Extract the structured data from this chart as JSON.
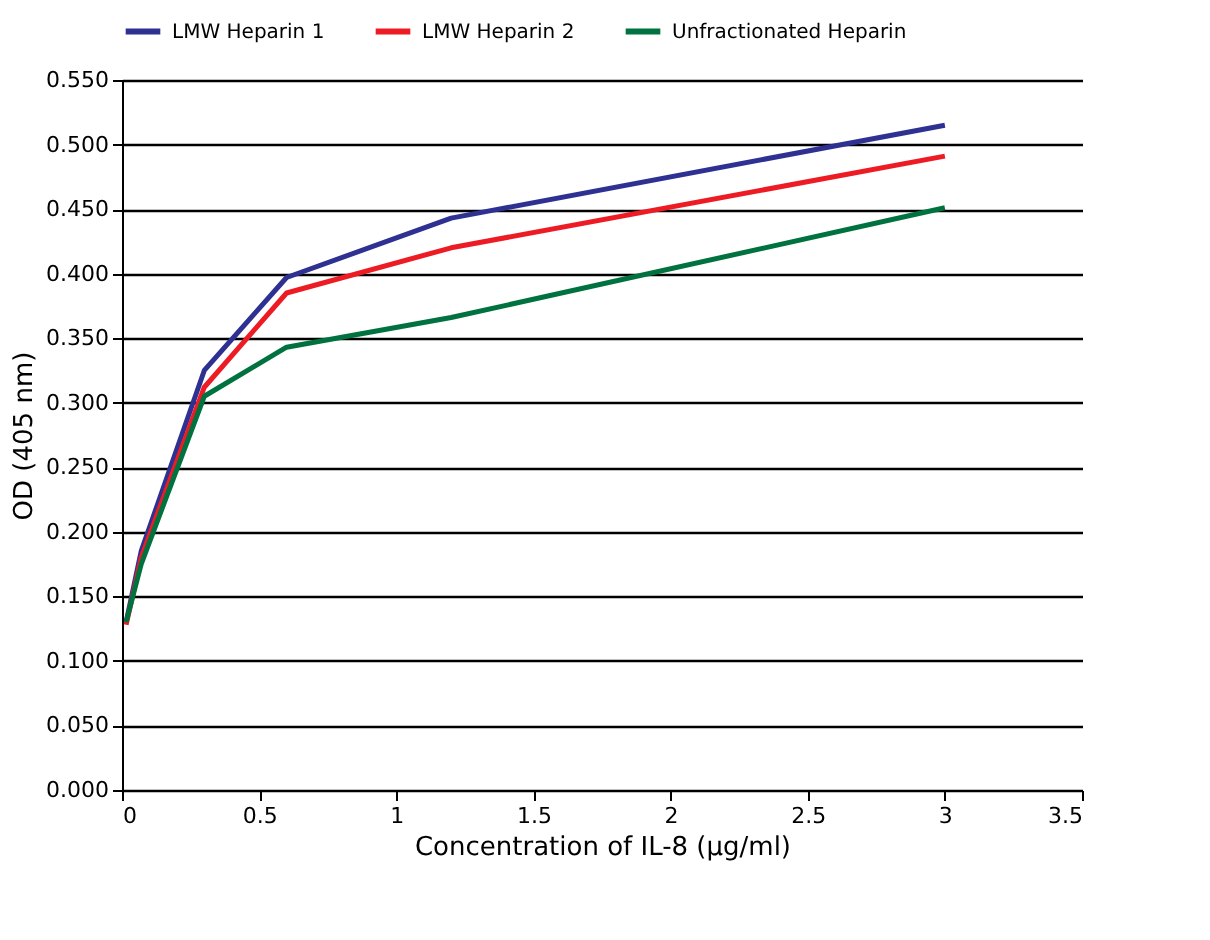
{
  "chart_data": {
    "type": "line",
    "xlabel": "Concentration of IL-8 (µg/ml)",
    "ylabel": "OD (405 nm)",
    "x": [
      0.015,
      0.07,
      0.3,
      0.6,
      1.2,
      3
    ],
    "series": [
      {
        "name": "LMW Heparin 1",
        "color": "#2e3192",
        "values": [
          0.13,
          0.185,
          0.325,
          0.397,
          0.443,
          0.515
        ]
      },
      {
        "name": "LMW Heparin 2",
        "color": "#ed1c24",
        "values": [
          0.128,
          0.18,
          0.312,
          0.385,
          0.42,
          0.491
        ]
      },
      {
        "name": "Unfractionated Heparin",
        "color": "#00723f",
        "values": [
          0.13,
          0.175,
          0.305,
          0.343,
          0.366,
          0.451
        ]
      }
    ],
    "xlim": [
      0,
      3.5
    ],
    "xticks": [
      0,
      0.5,
      1,
      1.5,
      2,
      2.5,
      3,
      3.5
    ],
    "ylim": [
      0,
      0.55
    ],
    "yticks": [
      {
        "value": 0,
        "label": "0.000"
      },
      {
        "value": 0.05,
        "label": "0.050"
      },
      {
        "value": 0.1,
        "label": "0.100"
      },
      {
        "value": 0.15,
        "label": "0.150"
      },
      {
        "value": 0.2,
        "label": "0.200"
      },
      {
        "value": 0.25,
        "label": "0.250"
      },
      {
        "value": 0.3,
        "label": "0.300"
      },
      {
        "value": 0.35,
        "label": "0.350"
      },
      {
        "value": 0.4,
        "label": "0.400"
      },
      {
        "value": 0.45,
        "label": "0.450"
      },
      {
        "value": 0.5,
        "label": "0.500"
      },
      {
        "value": 0.55,
        "label": "0.550"
      }
    ],
    "grid": "y",
    "legend": "top",
    "marker": "none",
    "line_style": "solid"
  }
}
